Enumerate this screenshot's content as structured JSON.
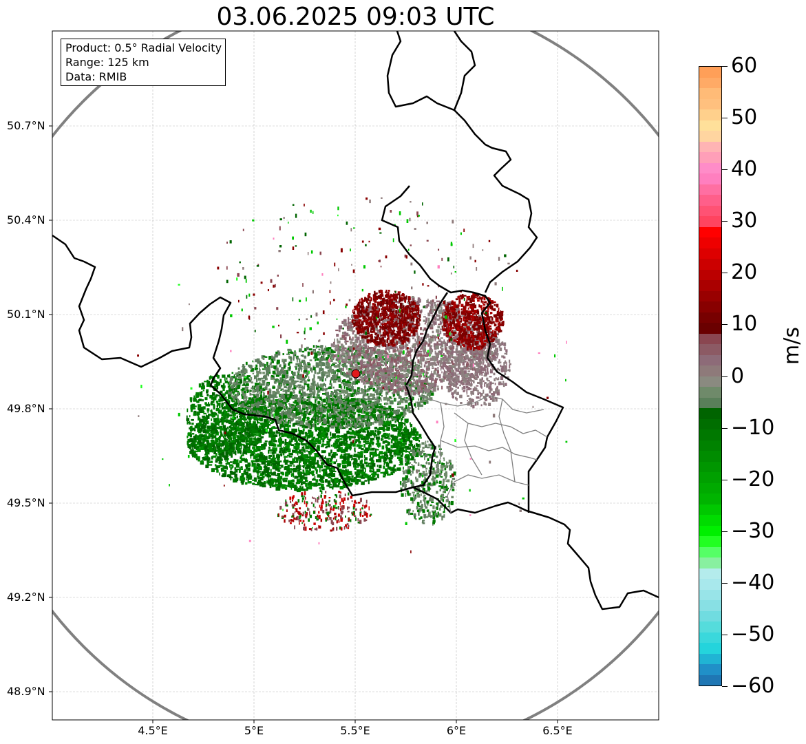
{
  "title": "03.06.2025 09:03 UTC",
  "info_box": {
    "product": "Product: 0.5° Radial Velocity",
    "range": "Range: 125 km",
    "source": "Data: RMIB"
  },
  "axes": {
    "lat_labels": [
      "50.7°N",
      "50.4°N",
      "50.1°N",
      "49.8°N",
      "49.5°N",
      "49.2°N",
      "48.9°N"
    ],
    "lon_labels": [
      "4.5°E",
      "5°E",
      "5.5°E",
      "6°E",
      "6.5°E"
    ],
    "lon_range": [
      4.0,
      7.0
    ],
    "lat_range": [
      48.8,
      50.99
    ],
    "grid": true
  },
  "radar": {
    "site_lon": 5.505,
    "site_lat": 49.914,
    "range_km": 125,
    "site_marker_color": "#e31a1c",
    "range_ring_color": "#808080"
  },
  "colorbar": {
    "label": "m/s",
    "min": -60,
    "max": 60,
    "tick_labels": [
      "60",
      "50",
      "40",
      "30",
      "20",
      "10",
      "0",
      "−10",
      "−20",
      "−30",
      "−40",
      "−50",
      "−60"
    ],
    "colors_top_to_bottom": [
      "#ff9f58",
      "#ffaa66",
      "#ffbb77",
      "#ffc07e",
      "#ffd08c",
      "#ffe09a",
      "#ffd5a0",
      "#ffb4b4",
      "#ff9fb8",
      "#ff8cc8",
      "#ff7fbf",
      "#ff6fa2",
      "#ff5f8a",
      "#ff5274",
      "#ff4460",
      "#ff0000",
      "#ee0000",
      "#dd0000",
      "#cc0000",
      "#bb0000",
      "#aa0000",
      "#990000",
      "#880000",
      "#770000",
      "#6a0000",
      "#8a4650",
      "#8c5a64",
      "#8d6b78",
      "#8e7a7a",
      "#8a8a80",
      "#6f8a6a",
      "#5a7f5a",
      "#006400",
      "#006e00",
      "#007800",
      "#008200",
      "#008c00",
      "#009600",
      "#00a000",
      "#00aa00",
      "#00b400",
      "#00c800",
      "#00dc00",
      "#00f000",
      "#22ff22",
      "#55ff66",
      "#88f0a0",
      "#b4ecec",
      "#a8e8ec",
      "#98e4e8",
      "#88e0e4",
      "#70dce0",
      "#55dcdc",
      "#3ad8dc",
      "#24d4dc",
      "#20b4d4",
      "#2090c8",
      "#1f77b4"
    ]
  },
  "map_colors": {
    "approach_green": "#007a00",
    "light_green": "#5f7d5f",
    "neutral_gray": "#8e7e80",
    "recede_red": "#7a0000",
    "border": "#000000",
    "admin_border": "#808080"
  }
}
